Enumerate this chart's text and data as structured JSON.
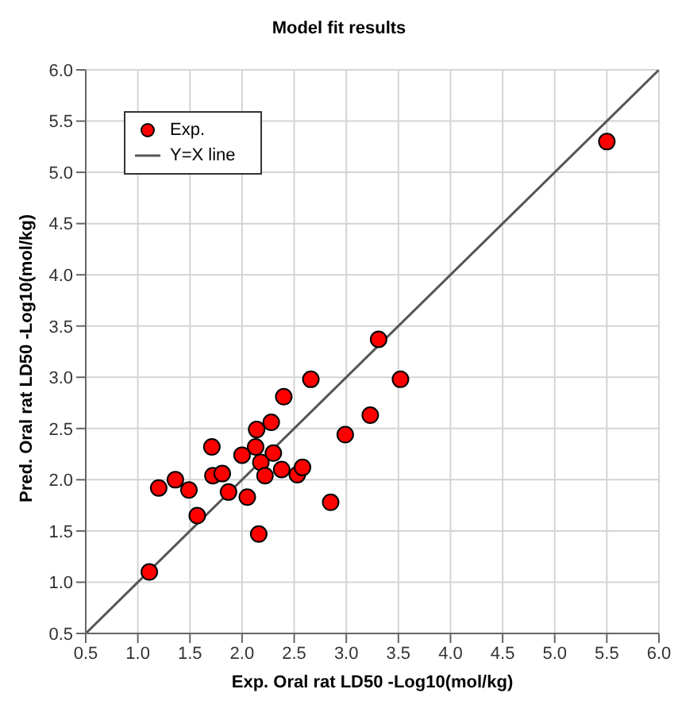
{
  "chart_data": {
    "type": "scatter",
    "title": "Model fit results",
    "xlabel": "Exp. Oral rat LD50 -Log10(mol/kg)",
    "ylabel": "Pred. Oral rat LD50 -Log10(mol/kg)",
    "series": [
      {
        "name": "Exp.",
        "type": "scatter",
        "color": "#ff0000",
        "marker": "circle",
        "x": [
          1.11,
          1.2,
          1.36,
          1.49,
          1.57,
          1.71,
          1.72,
          1.81,
          1.87,
          2.0,
          2.05,
          2.13,
          2.14,
          2.16,
          2.18,
          2.22,
          2.28,
          2.3,
          2.38,
          2.4,
          2.53,
          2.58,
          2.66,
          2.85,
          2.99,
          3.23,
          3.31,
          3.52,
          5.5
        ],
        "values": [
          1.1,
          1.92,
          2.0,
          1.9,
          1.65,
          2.32,
          2.04,
          2.06,
          1.88,
          2.24,
          1.83,
          2.32,
          2.49,
          1.47,
          2.17,
          2.04,
          2.56,
          2.26,
          2.1,
          2.81,
          2.05,
          2.12,
          2.98,
          1.78,
          2.44,
          2.63,
          3.37,
          2.98,
          5.3
        ]
      },
      {
        "name": "Y=X line",
        "type": "line",
        "color": "#555555",
        "marker": "none",
        "x": [
          0.5,
          6.0
        ],
        "values": [
          0.5,
          6.0
        ]
      }
    ],
    "xlim": [
      0.5,
      6.0
    ],
    "ylim": [
      0.5,
      6.0
    ],
    "xticks": [
      {
        "value": 0.5,
        "label": "0.5"
      },
      {
        "value": 1,
        "label": "1.0"
      },
      {
        "value": 1.5,
        "label": "1.5"
      },
      {
        "value": 2,
        "label": "2.0"
      },
      {
        "value": 2.5,
        "label": "2.5"
      },
      {
        "value": 3,
        "label": "3.0"
      },
      {
        "value": 3.5,
        "label": "3.5"
      },
      {
        "value": 4,
        "label": "4.0"
      },
      {
        "value": 4.5,
        "label": "4.5"
      },
      {
        "value": 5,
        "label": "5.0"
      },
      {
        "value": 5.5,
        "label": "5.5"
      },
      {
        "value": 6,
        "label": "6.0"
      }
    ],
    "yticks": [
      {
        "value": 0.5,
        "label": "0.5"
      },
      {
        "value": 1,
        "label": "1.0"
      },
      {
        "value": 1.5,
        "label": "1.5"
      },
      {
        "value": 2,
        "label": "2.0"
      },
      {
        "value": 2.5,
        "label": "2.5"
      },
      {
        "value": 3,
        "label": "3.0"
      },
      {
        "value": 3.5,
        "label": "3.5"
      },
      {
        "value": 4,
        "label": "4.0"
      },
      {
        "value": 4.5,
        "label": "4.5"
      },
      {
        "value": 5,
        "label": "5.0"
      },
      {
        "value": 5.5,
        "label": "5.5"
      },
      {
        "value": 6,
        "label": "6.0"
      }
    ],
    "grid": true,
    "legend": "top left"
  }
}
